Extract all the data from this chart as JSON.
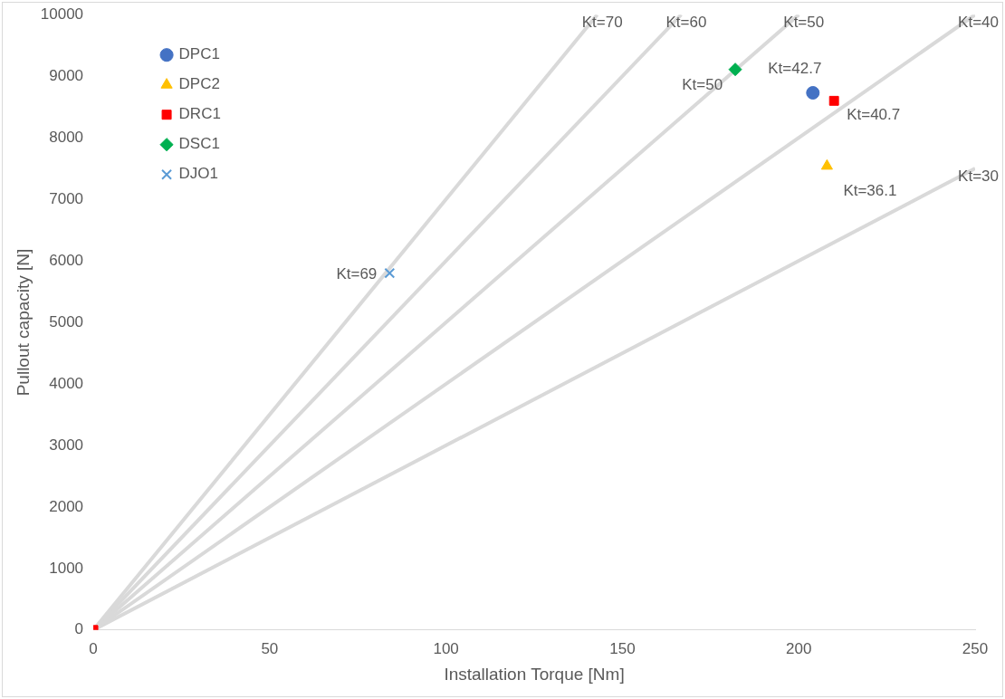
{
  "chart_data": {
    "type": "scatter",
    "xlabel": "Installation Torque [Nm]",
    "ylabel": "Pullout capacity [N]",
    "xlim": [
      0,
      250
    ],
    "xticks": [
      0,
      50,
      100,
      150,
      200,
      250
    ],
    "ylim": [
      0,
      10000
    ],
    "yticks": [
      0,
      1000,
      2000,
      3000,
      4000,
      5000,
      6000,
      7000,
      8000,
      9000,
      10000
    ],
    "grid": false,
    "legend": "top left",
    "series": [
      {
        "type": "line",
        "name": "Kt=70",
        "color": "#d9d9d9",
        "x": [
          0,
          142.86
        ],
        "values": [
          0,
          10000
        ],
        "marker": "none"
      },
      {
        "type": "line",
        "name": "Kt=60",
        "color": "#d9d9d9",
        "x": [
          0,
          166.67
        ],
        "values": [
          0,
          10000
        ],
        "marker": "none"
      },
      {
        "type": "line",
        "name": "Kt=50",
        "color": "#d9d9d9",
        "x": [
          0,
          200
        ],
        "values": [
          0,
          10000
        ],
        "marker": "none"
      },
      {
        "type": "line",
        "name": "Kt=40",
        "color": "#d9d9d9",
        "x": [
          0,
          250
        ],
        "values": [
          0,
          10000
        ],
        "marker": "none"
      },
      {
        "type": "line",
        "name": "Kt=30",
        "color": "#d9d9d9",
        "x": [
          0,
          250
        ],
        "values": [
          0,
          7500
        ],
        "marker": "none"
      },
      {
        "name": "DPC1",
        "color": "#4472c4",
        "marker": "circle",
        "x": [
          204
        ],
        "values": [
          8730
        ]
      },
      {
        "name": "DPC2",
        "color": "#ffc000",
        "marker": "triangle",
        "x": [
          208
        ],
        "values": [
          7540
        ]
      },
      {
        "name": "DRC1",
        "color": "#ff0000",
        "marker": "square",
        "x": [
          0,
          210
        ],
        "values": [
          0,
          8600
        ]
      },
      {
        "name": "DSC1",
        "color": "#00b050",
        "marker": "diamond",
        "x": [
          182
        ],
        "values": [
          9110
        ]
      },
      {
        "name": "DJO1",
        "color": "#5b9bd5",
        "marker": "cross",
        "x": [
          84
        ],
        "values": [
          5800
        ]
      }
    ],
    "annotations": [
      {
        "text": "Kt=42.7",
        "x": 204,
        "y": 8730
      },
      {
        "text": "Kt=36.1",
        "x": 208,
        "y": 7540
      },
      {
        "text": "Kt=40.7",
        "x": 210,
        "y": 8600
      },
      {
        "text": "Kt=50",
        "x": 182,
        "y": 9110
      },
      {
        "text": "Kt=69",
        "x": 84,
        "y": 5800
      }
    ]
  }
}
